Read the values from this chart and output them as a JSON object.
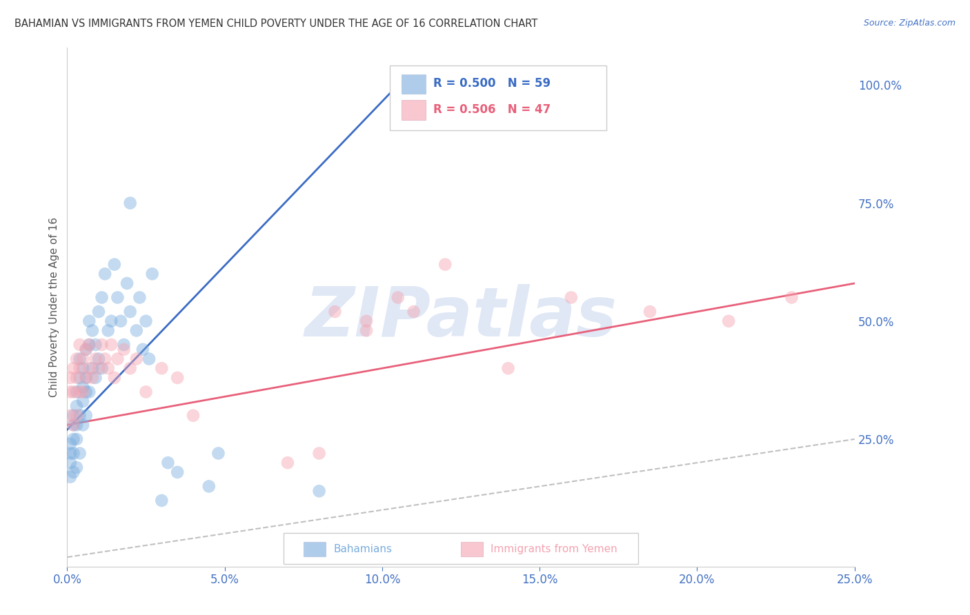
{
  "title": "BAHAMIAN VS IMMIGRANTS FROM YEMEN CHILD POVERTY UNDER THE AGE OF 16 CORRELATION CHART",
  "source": "Source: ZipAtlas.com",
  "ylabel": "Child Poverty Under the Age of 16",
  "x_tick_labels": [
    "0.0%",
    "5.0%",
    "10.0%",
    "15.0%",
    "20.0%",
    "25.0%"
  ],
  "x_tick_values": [
    0.0,
    0.05,
    0.1,
    0.15,
    0.2,
    0.25
  ],
  "y_tick_labels": [
    "100.0%",
    "75.0%",
    "50.0%",
    "25.0%"
  ],
  "y_tick_values": [
    1.0,
    0.75,
    0.5,
    0.25
  ],
  "xlim": [
    0.0,
    0.25
  ],
  "ylim": [
    -0.02,
    1.08
  ],
  "legend_blue_r": "R = 0.500",
  "legend_blue_n": "N = 59",
  "legend_pink_r": "R = 0.506",
  "legend_pink_n": "N = 47",
  "legend_label_blue": "Bahamians",
  "legend_label_pink": "Immigrants from Yemen",
  "title_color": "#333333",
  "axis_label_color": "#555555",
  "tick_color": "#4472c4",
  "watermark_text": "ZIPatlas",
  "watermark_color": "#ccd9f0",
  "blue_color": "#7aadde",
  "pink_color": "#f4a3b0",
  "blue_line_color": "#3a6bc4",
  "pink_line_color": "#e8607a",
  "ref_line_color": "#c0c0c0",
  "blue_scatter_x": [
    0.001,
    0.001,
    0.001,
    0.001,
    0.002,
    0.002,
    0.002,
    0.002,
    0.002,
    0.003,
    0.003,
    0.003,
    0.003,
    0.003,
    0.004,
    0.004,
    0.004,
    0.004,
    0.005,
    0.005,
    0.005,
    0.005,
    0.006,
    0.006,
    0.006,
    0.006,
    0.007,
    0.007,
    0.007,
    0.008,
    0.008,
    0.009,
    0.009,
    0.01,
    0.01,
    0.011,
    0.011,
    0.012,
    0.013,
    0.014,
    0.015,
    0.016,
    0.017,
    0.018,
    0.019,
    0.02,
    0.022,
    0.023,
    0.024,
    0.025,
    0.026,
    0.027,
    0.03,
    0.032,
    0.035,
    0.045,
    0.048,
    0.08,
    0.02
  ],
  "blue_scatter_y": [
    0.2,
    0.22,
    0.17,
    0.24,
    0.25,
    0.22,
    0.28,
    0.18,
    0.3,
    0.28,
    0.25,
    0.32,
    0.19,
    0.35,
    0.3,
    0.38,
    0.22,
    0.42,
    0.33,
    0.36,
    0.28,
    0.4,
    0.35,
    0.38,
    0.3,
    0.44,
    0.35,
    0.45,
    0.5,
    0.48,
    0.4,
    0.45,
    0.38,
    0.52,
    0.42,
    0.4,
    0.55,
    0.6,
    0.48,
    0.5,
    0.62,
    0.55,
    0.5,
    0.45,
    0.58,
    0.52,
    0.48,
    0.55,
    0.44,
    0.5,
    0.42,
    0.6,
    0.12,
    0.2,
    0.18,
    0.15,
    0.22,
    0.14,
    0.75
  ],
  "pink_scatter_x": [
    0.001,
    0.001,
    0.001,
    0.002,
    0.002,
    0.002,
    0.003,
    0.003,
    0.003,
    0.004,
    0.004,
    0.004,
    0.005,
    0.005,
    0.006,
    0.006,
    0.007,
    0.007,
    0.008,
    0.009,
    0.01,
    0.011,
    0.012,
    0.013,
    0.014,
    0.015,
    0.016,
    0.018,
    0.02,
    0.022,
    0.025,
    0.03,
    0.035,
    0.04,
    0.07,
    0.08,
    0.085,
    0.095,
    0.105,
    0.12,
    0.14,
    0.16,
    0.185,
    0.21,
    0.23,
    0.095,
    0.11
  ],
  "pink_scatter_y": [
    0.3,
    0.35,
    0.38,
    0.28,
    0.35,
    0.4,
    0.3,
    0.38,
    0.42,
    0.35,
    0.4,
    0.45,
    0.35,
    0.42,
    0.38,
    0.44,
    0.4,
    0.45,
    0.38,
    0.42,
    0.4,
    0.45,
    0.42,
    0.4,
    0.45,
    0.38,
    0.42,
    0.44,
    0.4,
    0.42,
    0.35,
    0.4,
    0.38,
    0.3,
    0.2,
    0.22,
    0.52,
    0.48,
    0.55,
    0.62,
    0.4,
    0.55,
    0.52,
    0.5,
    0.55,
    0.5,
    0.52
  ],
  "blue_line_x": [
    0.0,
    0.105
  ],
  "blue_line_y": [
    0.27,
    1.0
  ],
  "pink_line_x": [
    0.0,
    0.25
  ],
  "pink_line_y": [
    0.28,
    0.58
  ],
  "ref_line_x": [
    0.0,
    0.25
  ],
  "ref_line_y": [
    0.0,
    0.25
  ],
  "grid_color": "#e0e0e0",
  "background_color": "#ffffff"
}
